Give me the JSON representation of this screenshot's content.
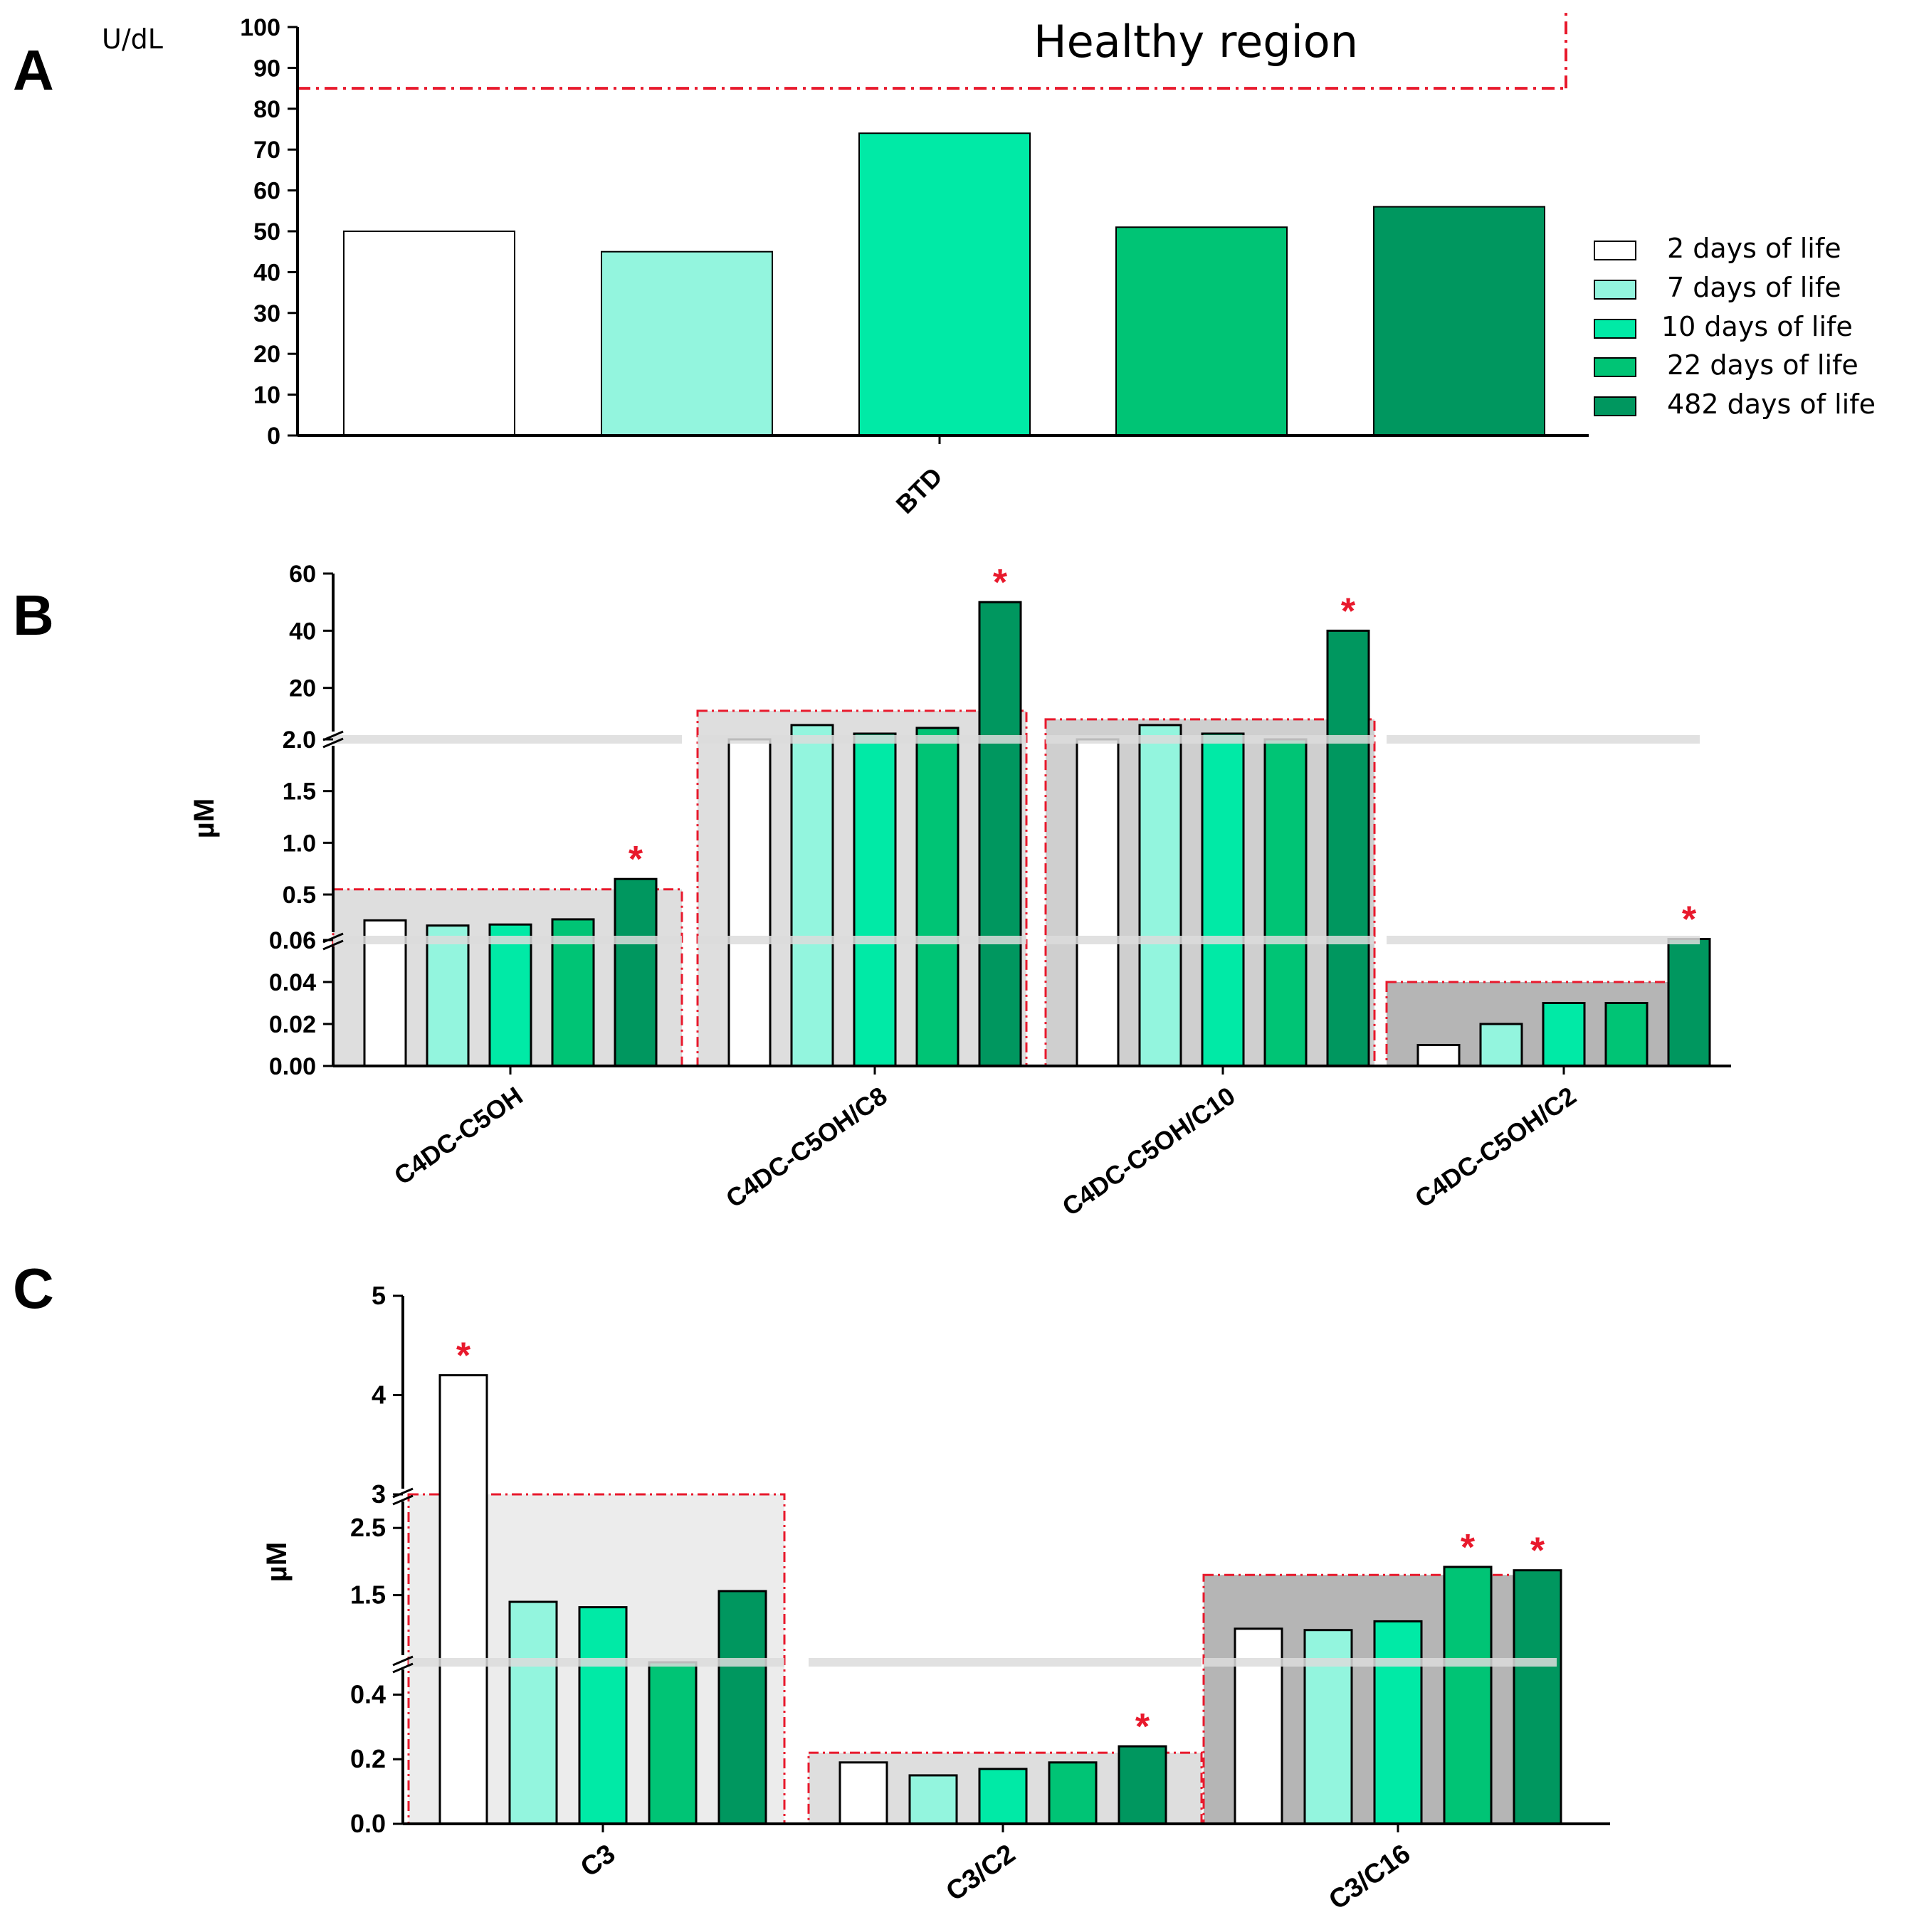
{
  "colors": {
    "series": [
      "#ffffff",
      "#93f5de",
      "#00eaa6",
      "#00c475",
      "#00975f"
    ],
    "axis": "#000000",
    "star": "#e8192c",
    "healthy_line": "#e8192c",
    "band_light": "#dedede",
    "band_mid": "#cfcfcf",
    "band_dark": "#b5b5b5",
    "band_lightest": "#ececec"
  },
  "legend": {
    "entries": [
      "2 days of life",
      "7 days of life",
      "10 days of life",
      "22 days of life",
      "482 days of life"
    ]
  },
  "chart_data": [
    {
      "panel": "A",
      "type": "bar",
      "title": "",
      "ylabel": "U/dL",
      "xlabel": "",
      "ylim": [
        0,
        100
      ],
      "yticks": [
        "0",
        "10",
        "20",
        "30",
        "40",
        "50",
        "60",
        "70",
        "80",
        "90",
        "100"
      ],
      "categories": [
        "BTD"
      ],
      "series": [
        {
          "name": "2 days of life",
          "values": [
            50
          ]
        },
        {
          "name": "7 days of life",
          "values": [
            45
          ]
        },
        {
          "name": "10 days of life",
          "values": [
            74
          ]
        },
        {
          "name": "22 days of life",
          "values": [
            51
          ]
        },
        {
          "name": "482 days of life",
          "values": [
            56
          ]
        }
      ],
      "annotation": {
        "text": "Healthy region",
        "threshold": 85
      }
    },
    {
      "panel": "B",
      "type": "bar",
      "ylabel": "µM",
      "axis_note": "broken y axis: 0-0.06 | 0.06-2.0 | 2.0-60",
      "ytick_labels": [
        "0.00",
        "0.02",
        "0.04",
        "0.06",
        "0.5",
        "1.0",
        "1.5",
        "2.0",
        "20",
        "40",
        "60"
      ],
      "categories": [
        "C4DC-C5OH",
        "C4DC-C5OH/C8",
        "C4DC-C5OH/C10",
        "C4DC-C5OH/C2"
      ],
      "series": [
        {
          "name": "2 days of life",
          "values": [
            0.25,
            2.0,
            2.0,
            0.01
          ]
        },
        {
          "name": "7 days of life",
          "values": [
            0.2,
            7.0,
            7.0,
            0.02
          ]
        },
        {
          "name": "10 days of life",
          "values": [
            0.21,
            4.0,
            4.0,
            0.03
          ]
        },
        {
          "name": "22 days of life",
          "values": [
            0.26,
            6.0,
            2.0,
            0.03
          ]
        },
        {
          "name": "482 days of life",
          "values": [
            0.65,
            50,
            40,
            0.07
          ]
        }
      ],
      "reference_upper": [
        0.55,
        12,
        9,
        0.04
      ],
      "significant": [
        "482 days of life"
      ],
      "star": "*"
    },
    {
      "panel": "C",
      "type": "bar",
      "ylabel": "µM",
      "axis_note": "broken y axis: 0-0.5 | 0.5-3 | 3-5",
      "ytick_labels": [
        "0.0",
        "0.2",
        "0.4",
        "1.5",
        "2.5",
        "3",
        "4",
        "5"
      ],
      "categories": [
        "C3",
        "C3/C2",
        "C3/C16"
      ],
      "series": [
        {
          "name": "2 days of life",
          "values": [
            4.2,
            0.19,
            1.0
          ]
        },
        {
          "name": "7 days of life",
          "values": [
            1.4,
            0.15,
            0.98
          ]
        },
        {
          "name": "10 days of life",
          "values": [
            1.32,
            0.17,
            1.11
          ]
        },
        {
          "name": "22 days of life",
          "values": [
            0.5,
            0.19,
            1.92
          ]
        },
        {
          "name": "482 days of life",
          "values": [
            1.56,
            0.24,
            1.87
          ]
        }
      ],
      "reference_upper": [
        3.0,
        0.22,
        1.8
      ],
      "significant_points": [
        [
          0,
          0
        ],
        [
          1,
          4
        ],
        [
          2,
          3
        ],
        [
          2,
          4
        ]
      ],
      "star": "*"
    }
  ],
  "panel_letters": [
    "A",
    "B",
    "C"
  ]
}
